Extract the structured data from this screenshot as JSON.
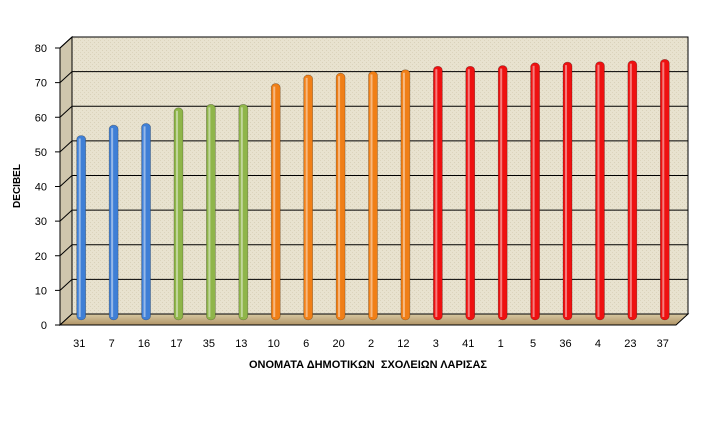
{
  "chart_data": {
    "type": "bar",
    "title": "",
    "xlabel": "ΟΝΟΜΑΤΑ ΔΗΜΟΤΙΚΩΝ  ΣΧΟΛΕΙΩΝ ΛΑΡΙΣΑΣ",
    "ylabel": "DECIBEL",
    "ylim": [
      0,
      80
    ],
    "yticks": [
      0,
      10,
      20,
      30,
      40,
      50,
      60,
      70,
      80
    ],
    "grid": true,
    "legend": "none",
    "categories": [
      "31",
      "7",
      "16",
      "17",
      "35",
      "13",
      "10",
      "6",
      "20",
      "2",
      "12",
      "3",
      "41",
      "1",
      "5",
      "36",
      "4",
      "23",
      "37"
    ],
    "values": [
      53,
      56,
      56.5,
      61,
      62,
      62,
      68,
      70.5,
      71,
      71.5,
      72,
      73,
      73,
      73.2,
      74,
      74.2,
      74.3,
      74.6,
      75
    ],
    "bar_colors": [
      "#3f7fd6",
      "#3f7fd6",
      "#3f7fd6",
      "#8fb54a",
      "#8fb54a",
      "#8fb54a",
      "#f07f17",
      "#f07f17",
      "#f07f17",
      "#f07f17",
      "#f07f17",
      "#ee1111",
      "#ee1111",
      "#ee1111",
      "#ee1111",
      "#ee1111",
      "#ee1111",
      "#ee1111",
      "#ee1111"
    ]
  }
}
